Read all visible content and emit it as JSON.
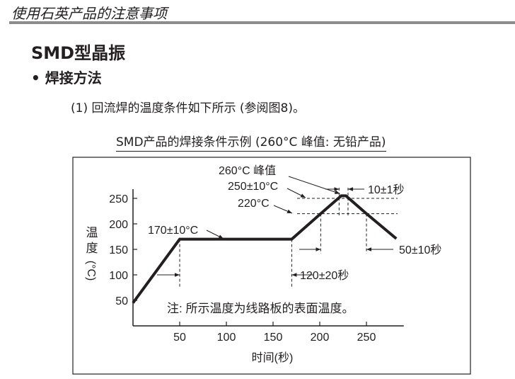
{
  "header": {
    "title": "使用石英产品的注意事项"
  },
  "section": {
    "title": "SMD型晶振",
    "subtitle": "• 焊接方法",
    "paragraph": "(1)  回流焊的温度条件如下所示 (参阅图8)。"
  },
  "chart_data": {
    "type": "line",
    "title": "SMD产品的焊接条件示例 (260°C 峰值: 无铅产品)",
    "xlabel": "时间(秒)",
    "ylabel": [
      "温",
      "度",
      "(°C)"
    ],
    "xticks": [
      50,
      100,
      150,
      200,
      250
    ],
    "yticks": [
      50,
      100,
      150,
      200,
      250
    ],
    "xlim": [
      0,
      290
    ],
    "ylim": [
      0,
      270
    ],
    "grid": false,
    "points": [
      [
        0,
        45
      ],
      [
        50,
        170
      ],
      [
        170,
        170
      ],
      [
        201,
        220
      ],
      [
        223,
        255
      ],
      [
        228,
        255
      ],
      [
        250,
        220
      ],
      [
        282,
        171
      ]
    ],
    "reference_lines": {
      "peak_zone_temp": 250,
      "reflow_temp": 220
    },
    "annotations": {
      "peak": "260°C 峰值",
      "peak_zone": "250±10°C",
      "reflow": "220°C",
      "preheat": "170±10°C",
      "peak_time": "10±1秒",
      "reflow_time": "50±10秒",
      "preheat_time": "120±20秒",
      "note": "注: 所示温度为线路板的表面温度。"
    },
    "line_color": "#231f20"
  }
}
